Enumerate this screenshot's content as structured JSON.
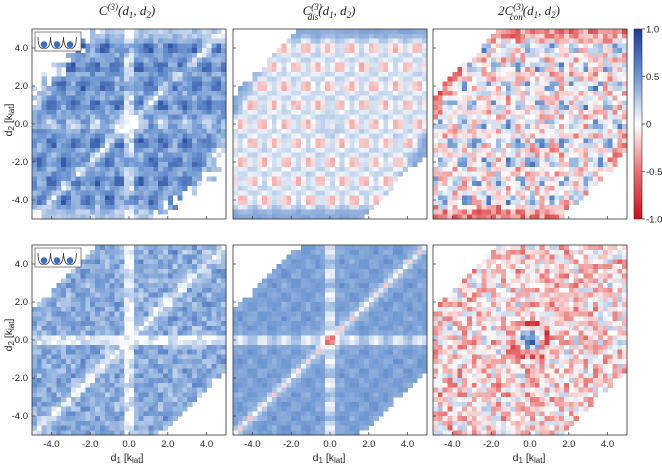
{
  "chart_data": {
    "type": "heatmap",
    "rows": [
      {
        "inset_icon": "triple-well-three-atoms-icon",
        "panels": [
          {
            "title": "C(3)(d1,d2)",
            "colormap": "white-blue",
            "pattern": "peaks-hexagonal-with-diagonal-lines"
          },
          {
            "title": "Cdis(3)(d1,d2)",
            "colormap": "diverging-red-white-blue",
            "pattern": "blue-background-red-peaks-hexagonal"
          },
          {
            "title": "2Ccon(3)(d1,d2)",
            "colormap": "diverging-red-white-blue",
            "pattern": "red-background-blue-peaks-hexagonal"
          }
        ]
      },
      {
        "inset_icon": "triple-well-three-atoms-icon",
        "panels": [
          {
            "title": "C(3)(d1,d2)",
            "colormap": "white-blue",
            "pattern": "star-of-lines-with-fine-peaks"
          },
          {
            "title": "Cdis(3)(d1,d2)",
            "colormap": "diverging-red-white-blue",
            "pattern": "blue-background-red-star"
          },
          {
            "title": "2Ccon(3)(d1,d2)",
            "colormap": "diverging-red-white-blue",
            "pattern": "central-ring-red-background"
          }
        ]
      }
    ],
    "x_axis": {
      "label": "d1 [klat]",
      "lim": [
        -5,
        5
      ],
      "ticks": [
        "-4.0",
        "-2.0",
        "0.0",
        "2.0",
        "4.0"
      ]
    },
    "y_axis": {
      "label": "d2 [klat]",
      "lim": [
        -5,
        5
      ],
      "ticks": [
        "4.0",
        "2.0",
        "0.0",
        "-2.0",
        "-4.0"
      ]
    },
    "colorbar": {
      "lim": [
        -1,
        1
      ],
      "ticks": [
        "1.0",
        "0.5",
        "0",
        "-0.5",
        "-1.0"
      ],
      "colors": {
        "max": "#1a3a94",
        "mid": "#ffffff",
        "min": "#c8101a"
      }
    },
    "grid": false,
    "legend": "none"
  },
  "labels": {
    "row1_titles": {
      "c3": {
        "main": "C",
        "sup": "(3)",
        "args": "(d",
        "a1": "1",
        "sep": ", d",
        "a2": "2",
        "close": ")"
      },
      "cdis": {
        "main": "C",
        "sup": "(3)",
        "sub": "dis",
        "args": "(d",
        "a1": "1",
        "sep": ", d",
        "a2": "2",
        "close": ")"
      },
      "ccon": {
        "pre": "2C",
        "sup": "(3)",
        "sub": "con",
        "args": "(d",
        "a1": "1",
        "sep": ", d",
        "a2": "2",
        "close": ")"
      }
    },
    "xlabel": {
      "main": "d",
      "sub1": "1",
      "mid": " [k",
      "sub2": "lat",
      "close": "]"
    },
    "ylabel": {
      "main": "d",
      "sub1": "2",
      "mid": " [k",
      "sub2": "lat",
      "close": "]"
    }
  }
}
